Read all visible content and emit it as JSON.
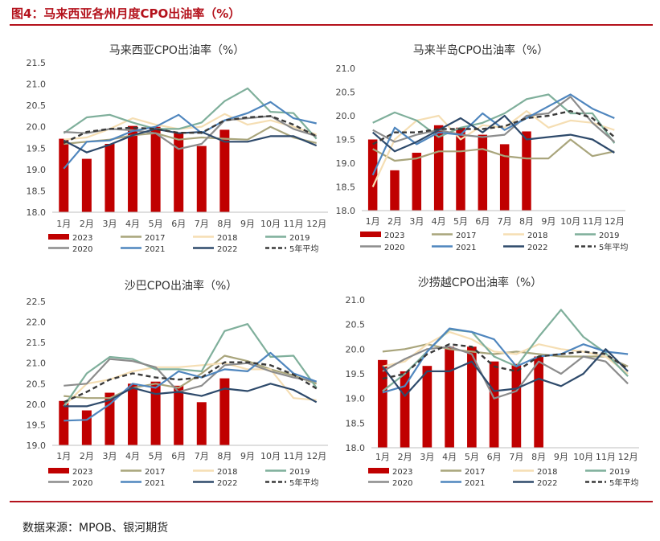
{
  "figure": {
    "title": "图4：马来西亚各州月度CPO出油率（%）",
    "source": "数据来源：MPOB、银河期货"
  },
  "colors": {
    "2023": "#c00000",
    "2017": "#a9a57c",
    "2018": "#f5deb3",
    "2019": "#7faf9b",
    "2020": "#8c8c8c",
    "2021": "#4f86be",
    "2022": "#2e4a6b",
    "avg": "#3a3a3a",
    "accent": "#b4121c"
  },
  "chart_data": [
    {
      "type": "bar+line",
      "title": "马来西亚CPO出油率（%）",
      "categories": [
        "1月",
        "2月",
        "3月",
        "4月",
        "5月",
        "6月",
        "7月",
        "8月",
        "9月",
        "10月",
        "11月",
        "12月"
      ],
      "ylim": [
        18.0,
        21.5
      ],
      "yticks": [
        "18.0",
        "18.5",
        "19.0",
        "19.5",
        "20.0",
        "20.5",
        "21.0",
        "21.5"
      ],
      "bar_series": {
        "name": "2023",
        "values": [
          19.72,
          19.25,
          19.6,
          20.02,
          20.0,
          19.85,
          19.55,
          19.93
        ]
      },
      "series": [
        {
          "name": "2017",
          "values": [
            19.6,
            19.65,
            19.7,
            19.8,
            19.85,
            19.7,
            19.75,
            19.72,
            19.7,
            20.0,
            19.75,
            19.62
          ]
        },
        {
          "name": "2018",
          "values": [
            19.7,
            19.75,
            19.95,
            20.2,
            20.05,
            19.95,
            20.0,
            20.3,
            20.05,
            20.15,
            20.0,
            19.82
          ]
        },
        {
          "name": "2019",
          "values": [
            19.85,
            20.22,
            20.28,
            20.1,
            19.95,
            19.95,
            20.1,
            20.6,
            20.9,
            20.35,
            20.32,
            19.72
          ]
        },
        {
          "name": "2020",
          "values": [
            19.88,
            19.85,
            19.95,
            19.92,
            19.85,
            19.48,
            19.6,
            20.15,
            20.2,
            20.25,
            19.95,
            19.78
          ]
        },
        {
          "name": "2021",
          "values": [
            19.02,
            19.65,
            19.68,
            19.9,
            20.0,
            20.28,
            19.85,
            20.15,
            20.32,
            20.58,
            20.2,
            20.08
          ]
        },
        {
          "name": "2022",
          "values": [
            19.68,
            19.4,
            19.58,
            19.8,
            19.95,
            19.85,
            19.88,
            19.65,
            19.65,
            19.78,
            19.78,
            19.56
          ]
        },
        {
          "name": "5年平均",
          "values": [
            19.62,
            19.88,
            19.95,
            19.98,
            19.95,
            19.86,
            19.86,
            20.15,
            20.22,
            20.25,
            20.05,
            19.78
          ]
        }
      ],
      "legend": [
        "2023",
        "2017",
        "2018",
        "2019",
        "2020",
        "2021",
        "2022",
        "5年平均"
      ]
    },
    {
      "type": "bar+line",
      "title": "马来半岛CPO出油率（%）",
      "categories": [
        "1月",
        "2月",
        "3月",
        "4月",
        "5月",
        "6月",
        "7月",
        "8月",
        "9月",
        "10月",
        "11月",
        "12月"
      ],
      "ylim": [
        18.0,
        21.0
      ],
      "yticks": [
        "18.0",
        "18.5",
        "19.0",
        "19.5",
        "20.0",
        "20.5",
        "21.0"
      ],
      "bar_series": {
        "name": "2023",
        "values": [
          19.5,
          18.85,
          19.22,
          19.8,
          19.75,
          19.6,
          19.4,
          19.67
        ]
      },
      "series": [
        {
          "name": "2017",
          "values": [
            19.3,
            19.05,
            19.1,
            19.25,
            19.25,
            19.3,
            19.15,
            19.1,
            19.1,
            19.5,
            19.15,
            19.25
          ]
        },
        {
          "name": "2018",
          "values": [
            18.5,
            19.5,
            19.9,
            20.0,
            19.5,
            19.8,
            19.75,
            20.1,
            19.75,
            19.9,
            19.85,
            19.7
          ]
        },
        {
          "name": "2019",
          "values": [
            19.85,
            20.07,
            19.9,
            19.55,
            19.75,
            19.85,
            20.05,
            20.35,
            20.45,
            20.05,
            20.05,
            19.42
          ]
        },
        {
          "name": "2020",
          "values": [
            19.7,
            19.45,
            19.6,
            19.7,
            19.6,
            19.55,
            19.6,
            20.0,
            20.05,
            20.4,
            19.85,
            19.45
          ]
        },
        {
          "name": "2021",
          "values": [
            18.75,
            19.75,
            19.4,
            19.65,
            19.6,
            20.05,
            19.7,
            19.95,
            20.2,
            20.45,
            20.15,
            19.95
          ]
        },
        {
          "name": "2022",
          "values": [
            19.65,
            19.25,
            19.45,
            19.7,
            19.95,
            19.65,
            20.0,
            19.5,
            19.55,
            19.6,
            19.5,
            19.22
          ]
        },
        {
          "name": "5年平均",
          "values": [
            19.4,
            19.65,
            19.65,
            19.72,
            19.72,
            19.72,
            19.78,
            19.95,
            20.0,
            20.1,
            19.95,
            19.55
          ]
        }
      ],
      "legend": [
        "2023",
        "2017",
        "2018",
        "2019",
        "2020",
        "2021",
        "2022",
        "5年平均"
      ]
    },
    {
      "type": "bar+line",
      "title": "沙巴CPO出油率（%）",
      "categories": [
        "1月",
        "2月",
        "3月",
        "4月",
        "5月",
        "6月",
        "7月",
        "8月",
        "9月",
        "10月",
        "11月",
        "12月"
      ],
      "ylim": [
        19.0,
        22.5
      ],
      "yticks": [
        "19.0",
        "19.5",
        "20.0",
        "20.5",
        "21.0",
        "21.5",
        "22.0",
        "22.5"
      ],
      "bar_series": {
        "name": "2023",
        "values": [
          20.08,
          19.85,
          20.28,
          20.5,
          20.55,
          20.45,
          20.05,
          20.63
        ]
      },
      "series": [
        {
          "name": "2017",
          "values": [
            20.2,
            20.15,
            20.15,
            20.4,
            20.5,
            20.4,
            20.75,
            21.18,
            21.05,
            20.85,
            20.7,
            20.5
          ]
        },
        {
          "name": "2018",
          "values": [
            19.95,
            20.5,
            20.6,
            20.8,
            20.9,
            20.9,
            20.95,
            21.0,
            20.85,
            20.85,
            20.15,
            20.1
          ]
        },
        {
          "name": "2019",
          "values": [
            19.95,
            20.75,
            21.15,
            21.1,
            20.85,
            20.85,
            20.8,
            21.78,
            21.95,
            21.15,
            21.18,
            20.4
          ]
        },
        {
          "name": "2020",
          "values": [
            20.45,
            20.5,
            21.1,
            21.05,
            20.9,
            20.3,
            20.45,
            20.95,
            21.0,
            20.8,
            20.65,
            20.55
          ]
        },
        {
          "name": "2021",
          "values": [
            19.6,
            19.62,
            20.0,
            20.5,
            20.4,
            20.8,
            20.65,
            20.85,
            20.8,
            21.25,
            20.75,
            20.55
          ]
        },
        {
          "name": "2022",
          "values": [
            19.95,
            19.95,
            20.1,
            20.4,
            20.25,
            20.3,
            20.2,
            20.38,
            20.32,
            20.5,
            20.35,
            20.05
          ]
        },
        {
          "name": "5年平均",
          "values": [
            20.05,
            20.3,
            20.6,
            20.75,
            20.65,
            20.6,
            20.65,
            21.02,
            21.02,
            20.95,
            20.72,
            20.38
          ]
        }
      ],
      "legend": [
        "2023",
        "2017",
        "2018",
        "2019",
        "2020",
        "2021",
        "2022",
        "5年平均"
      ]
    },
    {
      "type": "bar+line",
      "title": "沙捞越CPO出油率（%）",
      "categories": [
        "1月",
        "2月",
        "3月",
        "4月",
        "5月",
        "6月",
        "7月",
        "8月",
        "9月",
        "10月",
        "11月",
        "12月"
      ],
      "ylim": [
        18.0,
        21.0
      ],
      "yticks": [
        "18.0",
        "18.5",
        "19.0",
        "19.5",
        "20.0",
        "20.5",
        "21.0"
      ],
      "bar_series": {
        "name": "2023",
        "values": [
          19.78,
          19.55,
          19.66,
          20.05,
          20.05,
          19.75,
          19.7,
          19.85
        ]
      },
      "series": [
        {
          "name": "2017",
          "values": [
            19.95,
            20.0,
            20.1,
            20.0,
            19.95,
            19.9,
            19.95,
            19.9,
            19.85,
            19.85,
            19.85,
            19.65
          ]
        },
        {
          "name": "2018",
          "values": [
            19.65,
            19.75,
            20.1,
            20.35,
            20.2,
            19.95,
            19.9,
            20.1,
            20.0,
            19.95,
            19.85,
            19.5
          ]
        },
        {
          "name": "2019",
          "values": [
            19.15,
            19.5,
            19.95,
            20.4,
            20.35,
            19.85,
            19.65,
            20.25,
            20.8,
            20.25,
            19.92,
            19.45
          ]
        },
        {
          "name": "2020",
          "values": [
            19.55,
            19.8,
            20.0,
            20.05,
            19.9,
            19.0,
            19.15,
            19.75,
            19.5,
            19.85,
            19.75,
            19.3
          ]
        },
        {
          "name": "2021",
          "values": [
            19.12,
            19.25,
            19.95,
            20.42,
            20.35,
            20.2,
            19.65,
            19.85,
            19.9,
            20.1,
            19.95,
            19.9
          ]
        },
        {
          "name": "2022",
          "values": [
            19.65,
            19.05,
            19.55,
            19.55,
            19.75,
            19.15,
            19.2,
            19.4,
            19.25,
            19.5,
            20.0,
            19.55
          ]
        },
        {
          "name": "5年平均",
          "values": [
            19.4,
            19.5,
            19.9,
            20.1,
            20.05,
            19.65,
            19.55,
            19.85,
            19.9,
            19.95,
            19.9,
            19.6
          ]
        }
      ],
      "legend": [
        "2023",
        "2017",
        "2018",
        "2019",
        "2020",
        "2021",
        "2022",
        "5年平均"
      ]
    }
  ]
}
